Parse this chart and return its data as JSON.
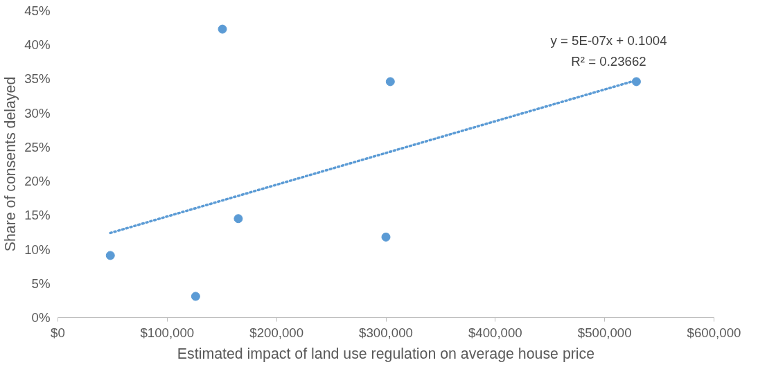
{
  "chart_data": {
    "type": "scatter",
    "xlabel": "Estimated impact of land use regulation on average house price",
    "ylabel": "Share of consents delayed",
    "grid": false,
    "xlim": [
      0,
      600000
    ],
    "ylim": [
      0,
      45
    ],
    "xticks": [
      {
        "value": 0,
        "label": "$0"
      },
      {
        "value": 100000,
        "label": "$100,000"
      },
      {
        "value": 200000,
        "label": "$200,000"
      },
      {
        "value": 300000,
        "label": "$300,000"
      },
      {
        "value": 400000,
        "label": "$400,000"
      },
      {
        "value": 500000,
        "label": "$500,000"
      },
      {
        "value": 600000,
        "label": "$600,000"
      }
    ],
    "yticks": [
      {
        "value": 0,
        "label": "0%"
      },
      {
        "value": 5,
        "label": "5%"
      },
      {
        "value": 10,
        "label": "10%"
      },
      {
        "value": 15,
        "label": "15%"
      },
      {
        "value": 20,
        "label": "20%"
      },
      {
        "value": 25,
        "label": "25%"
      },
      {
        "value": 30,
        "label": "30%"
      },
      {
        "value": 35,
        "label": "35%"
      },
      {
        "value": 40,
        "label": "40%"
      },
      {
        "value": 45,
        "label": "45%"
      }
    ],
    "series": [
      {
        "marker": "circle",
        "color": "#5b9bd5",
        "x": [
          48000,
          126000,
          150500,
          165000,
          304000,
          300000,
          529000
        ],
        "values": [
          9.1,
          3.1,
          42.3,
          14.5,
          34.6,
          11.8,
          34.6
        ]
      },
      {
        "type": "line",
        "line_style": "dotted",
        "color": "#5b9bd5",
        "x": [
          48000,
          529000
        ],
        "values": [
          12.4,
          34.8
        ]
      }
    ],
    "annotations": [
      "y = 5E-07x + 0.1004",
      "R² = 0.23662"
    ]
  }
}
